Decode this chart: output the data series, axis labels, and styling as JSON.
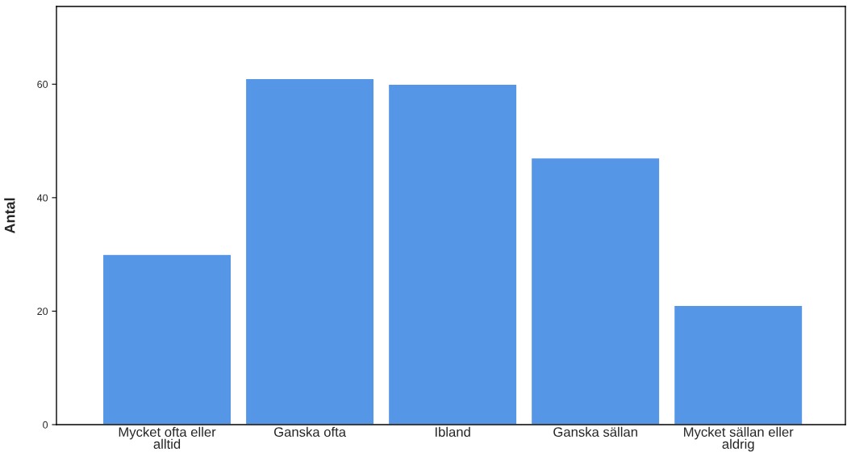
{
  "chart_data": {
    "type": "bar",
    "ylabel": "Antal",
    "categories": [
      "Mycket ofta eller\nalltid",
      "Ganska ofta",
      "Ibland",
      "Ganska sällan",
      "Mycket sällan eller\naldrig"
    ],
    "values": [
      30,
      61,
      60,
      47,
      21
    ],
    "color": "#5596e6",
    "ylim": [
      0,
      73.7
    ],
    "yticks": [
      0,
      20,
      40,
      60
    ],
    "grid": false
  }
}
